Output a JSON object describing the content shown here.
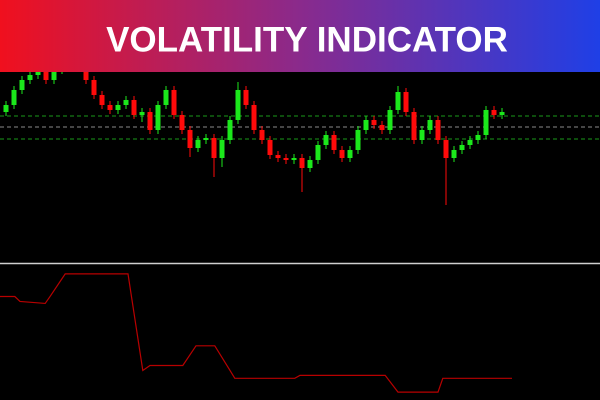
{
  "title": "VOLATILITY INDICATOR",
  "chart_data": [
    {
      "type": "candlestick",
      "up_color": "#1be81b",
      "down_color": "#ff0a0a",
      "xlim": [
        -0.75,
        74.25
      ],
      "ylim": [
        0,
        262
      ],
      "open": [
        150,
        157,
        172,
        182,
        187,
        190,
        182,
        192,
        197,
        202,
        197,
        182,
        167,
        157,
        152,
        157,
        162,
        147,
        150,
        132,
        157,
        172,
        147,
        132,
        114,
        122,
        124,
        104,
        122,
        142,
        172,
        157,
        132,
        122,
        107,
        104,
        102,
        104,
        94,
        102,
        117,
        127,
        112,
        104,
        112,
        132,
        142,
        137,
        132,
        152,
        170,
        150,
        122,
        132,
        142,
        122,
        104,
        112,
        117,
        122,
        127,
        152,
        147
      ],
      "high": [
        161,
        176,
        186,
        191,
        194,
        194,
        196,
        201,
        206,
        206,
        201,
        186,
        171,
        161,
        161,
        166,
        166,
        154,
        154,
        161,
        176,
        176,
        151,
        136,
        126,
        128,
        128,
        126,
        146,
        180,
        176,
        161,
        136,
        126,
        111,
        108,
        108,
        108,
        106,
        121,
        131,
        131,
        116,
        116,
        136,
        146,
        146,
        141,
        156,
        176,
        174,
        154,
        136,
        146,
        146,
        126,
        116,
        121,
        126,
        131,
        156,
        156,
        154
      ],
      "low": [
        146,
        153,
        168,
        178,
        183,
        178,
        178,
        188,
        193,
        193,
        178,
        163,
        153,
        148,
        148,
        153,
        143,
        140,
        128,
        128,
        153,
        143,
        128,
        105,
        110,
        118,
        85,
        95,
        118,
        138,
        153,
        128,
        118,
        103,
        100,
        98,
        98,
        70,
        90,
        98,
        113,
        108,
        100,
        100,
        108,
        128,
        133,
        128,
        128,
        148,
        146,
        118,
        118,
        128,
        118,
        57,
        100,
        108,
        113,
        118,
        123,
        143,
        143
      ],
      "close": [
        157,
        172,
        182,
        187,
        190,
        182,
        192,
        197,
        202,
        197,
        182,
        167,
        157,
        152,
        157,
        162,
        147,
        150,
        132,
        157,
        172,
        147,
        132,
        114,
        122,
        124,
        104,
        122,
        142,
        172,
        157,
        132,
        122,
        107,
        104,
        102,
        104,
        94,
        102,
        117,
        127,
        112,
        104,
        112,
        132,
        142,
        137,
        132,
        152,
        170,
        150,
        122,
        132,
        142,
        122,
        104,
        112,
        117,
        122,
        127,
        152,
        147,
        150
      ],
      "levels": [
        146,
        135,
        123
      ],
      "level_colors": [
        "#1a9a1a",
        "#8a8a8a",
        "#1a9a1a"
      ]
    },
    {
      "type": "line",
      "color": "#b80000",
      "xlim": [
        -0.75,
        74.25
      ],
      "ylim": [
        0,
        137
      ],
      "x": [
        -0.75,
        1.1,
        1.75,
        4.9,
        5.5,
        7.4,
        15.25,
        17.1,
        18,
        22.1,
        23.75,
        26.1,
        28,
        28.6,
        36.1,
        36.75,
        47.4,
        49,
        54,
        54.6,
        63.25
      ],
      "values": [
        105,
        105,
        100,
        98,
        105,
        128,
        128,
        30,
        35,
        35,
        55,
        55,
        30,
        22,
        22,
        25,
        25,
        8,
        8,
        22,
        22
      ]
    }
  ]
}
